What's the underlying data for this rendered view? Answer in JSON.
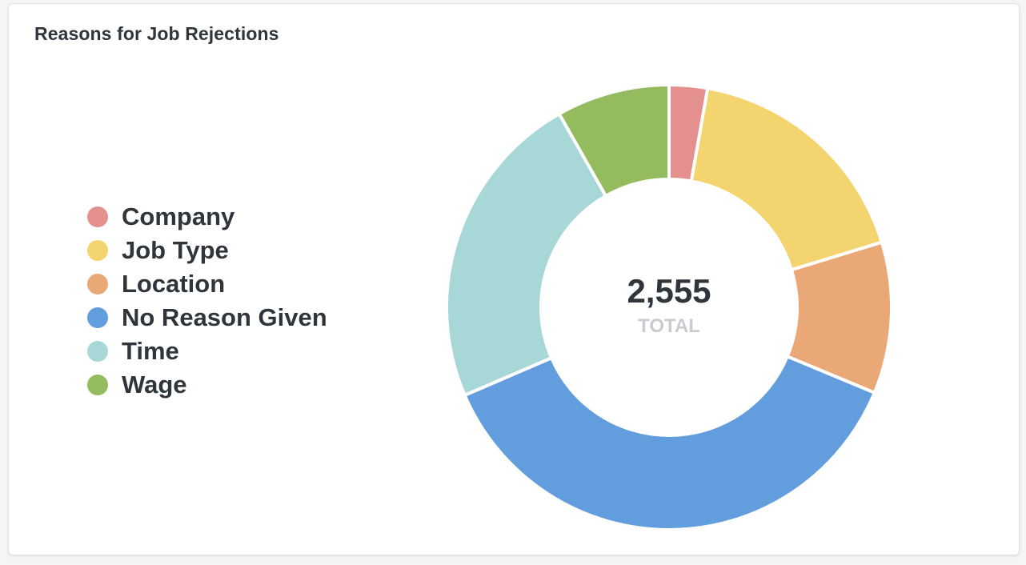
{
  "card": {
    "title": "Reasons for Job Rejections"
  },
  "chart_data": {
    "type": "pie",
    "subtype": "donut",
    "title": "Reasons for Job Rejections",
    "total": {
      "value": "2,555",
      "label": "TOTAL"
    },
    "legend_position": "left",
    "categories": [
      "Company",
      "Job Type",
      "Location",
      "No Reason Given",
      "Time",
      "Wage"
    ],
    "values": [
      71,
      447,
      281,
      952,
      594,
      210
    ],
    "colors": [
      "#e4908e",
      "#f3d46f",
      "#e9a875",
      "#629ddd",
      "#a7d7d7",
      "#95bb5f"
    ],
    "draw_order": [
      "Company",
      "Job Type",
      "Location",
      "No Reason Given",
      "Time",
      "Wage"
    ]
  }
}
